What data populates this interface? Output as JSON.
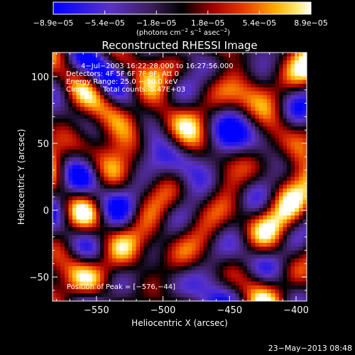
{
  "chart_data": {
    "type": "heatmap",
    "title": "Reconstructed RHESSI Image",
    "xlabel": "Heliocentric X (arcsec)",
    "ylabel": "Heliocentric Y (arcsec)",
    "xlim": [
      -583,
      -392
    ],
    "ylim": [
      -68,
      118
    ],
    "x_ticks": [
      -550,
      -500,
      -450,
      -400
    ],
    "x_tick_labels": [
      "−550",
      "−500",
      "−450",
      "−400"
    ],
    "y_ticks": [
      -50,
      0,
      50,
      100
    ],
    "y_tick_labels": [
      "−50",
      "0",
      "50",
      "100"
    ],
    "colorbar": {
      "min": -8.9e-05,
      "max": 8.9e-05,
      "tick_labels": [
        "−8.9e−05",
        "−5.4e−05",
        "−1.8e−05",
        "1.8e−05",
        "5.4e−05",
        "8.9e−05"
      ],
      "label_prefix": "(photons cm",
      "label_sup1": "−2",
      "label_mid": " s",
      "label_sup2": "−1",
      "label_mid2": " asec",
      "label_sup3": "−2",
      "label_suffix": ")",
      "colormap": "RHESSI blue-purple-black-red-yellow-white"
    },
    "peak_position": [
      -576,
      -44
    ]
  },
  "annotations": {
    "time_range": "4−Jul−2003 16:22:28.000 to 16:27:56.000",
    "detectors": "Detectors: 4F 5F 6F 7F 8F, Att 0",
    "energy_range": "Energy Range: 25.0 − 50.0 keV",
    "clean_label": "Clean",
    "total_counts": "Total counts: 5.47E+03",
    "peak": "Position of Peak = [−576,−44]"
  },
  "footer": {
    "timestamp": "23−May−2013 08:48"
  }
}
